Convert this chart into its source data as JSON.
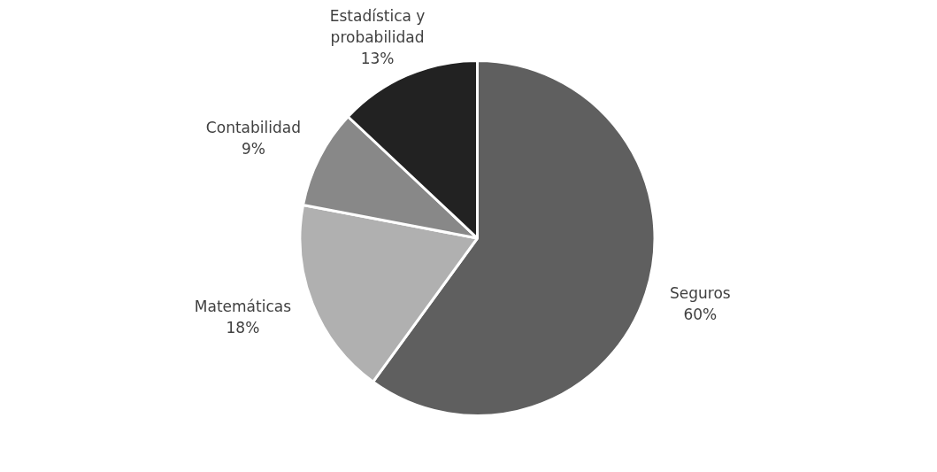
{
  "chart_data": {
    "type": "pie",
    "categories": [
      "Seguros",
      "Matemáticas",
      "Contabilidad",
      "Estadística y probabilidad"
    ],
    "values": [
      60,
      18,
      9,
      13
    ],
    "colors": [
      "#5f5f5f",
      "#b0b0b0",
      "#888888",
      "#222222"
    ],
    "value_labels": [
      "60%",
      "18%",
      "9%",
      "13%"
    ],
    "legend": false
  }
}
